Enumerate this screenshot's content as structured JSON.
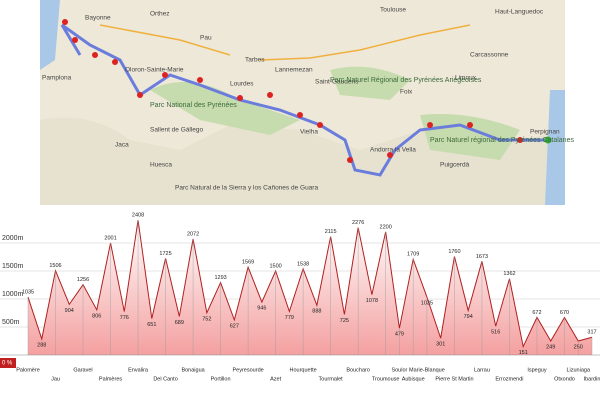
{
  "map": {
    "labels": [
      "Bayonne",
      "Orthez",
      "Pau",
      "Tarbes",
      "Lourdes",
      "Toulouse",
      "Oloron-Sainte-Marie",
      "Lannemezan",
      "Saint-Gaudens",
      "Foix",
      "Carcassonne",
      "Limoux",
      "Perpignan",
      "Parc National des Pyrénées",
      "Parc Naturel Régional des Pyrénées Ariégeoises",
      "Parc Naturel régional des Pyrénées Catalanes",
      "Parc Natural de la Sierra y los Cañones de Guara",
      "Haut-Languedoc",
      "Pamplona",
      "Huesca",
      "Andorra la Vella",
      "Puigcerdà",
      "Vielha",
      "Sallent de Gállego",
      "Jaca"
    ]
  },
  "chart_data": {
    "type": "area",
    "annotations": [
      "0 %"
    ],
    "categories": [
      "Palomère",
      null,
      "Jau",
      null,
      "Garavel",
      null,
      "Palmères",
      null,
      "Envalira",
      null,
      "Del Canto",
      null,
      "Bonaigua",
      null,
      "Portillon",
      null,
      "Peyresourde",
      null,
      "Azet",
      null,
      "Hourquette",
      null,
      "Tourmalet",
      null,
      "Boucharo",
      null,
      "Troumouse",
      "Soulor",
      "Aubisque",
      "Marie-Blanque",
      null,
      "Pierre St Martin",
      null,
      "Larrau",
      null,
      "Errozmendi",
      null,
      "Ispeguy",
      null,
      "Otxondo",
      "Lizuniaga",
      "Ibardin"
    ],
    "values": [
      1035,
      288,
      1506,
      904,
      1256,
      806,
      2001,
      776,
      2408,
      651,
      1725,
      689,
      2072,
      752,
      1293,
      627,
      1569,
      946,
      1500,
      779,
      1538,
      888,
      2115,
      725,
      2276,
      1078,
      2200,
      479,
      1709,
      1035,
      301,
      1760,
      794,
      1673,
      516,
      1362,
      151,
      672,
      249,
      670,
      250,
      317
    ],
    "color": "#b02020",
    "ylim": [
      0,
      2500
    ],
    "yticks": [
      {
        "value": 500,
        "label": "500m"
      },
      {
        "value": 1000,
        "label": "1000m"
      },
      {
        "value": 1500,
        "label": "1500m"
      },
      {
        "value": 2000,
        "label": "2000m"
      }
    ],
    "grid": true
  }
}
